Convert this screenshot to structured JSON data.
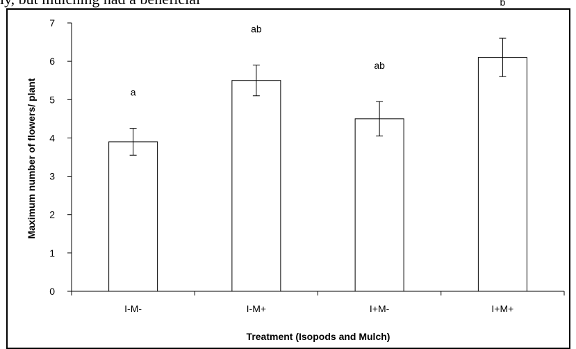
{
  "page": {
    "top_text": "ly, but mulching had a beneficial"
  },
  "chart_data": {
    "type": "bar",
    "title": "",
    "xlabel": "Treatment (Isopods and Mulch)",
    "ylabel": "Maximum number of flowers/ plant",
    "categories": [
      "I-M-",
      "I-M+",
      "I+M-",
      "I+M+"
    ],
    "values": [
      3.9,
      5.5,
      4.5,
      6.1
    ],
    "error": [
      0.35,
      0.4,
      0.45,
      0.5
    ],
    "significance": [
      "a",
      "ab",
      "ab",
      "b"
    ],
    "ylim": [
      0,
      7
    ],
    "yticks": [
      0,
      1,
      2,
      3,
      4,
      5,
      6,
      7
    ],
    "grid": false,
    "bar_color": "#ffffff",
    "bar_edge_color": "#000000"
  }
}
